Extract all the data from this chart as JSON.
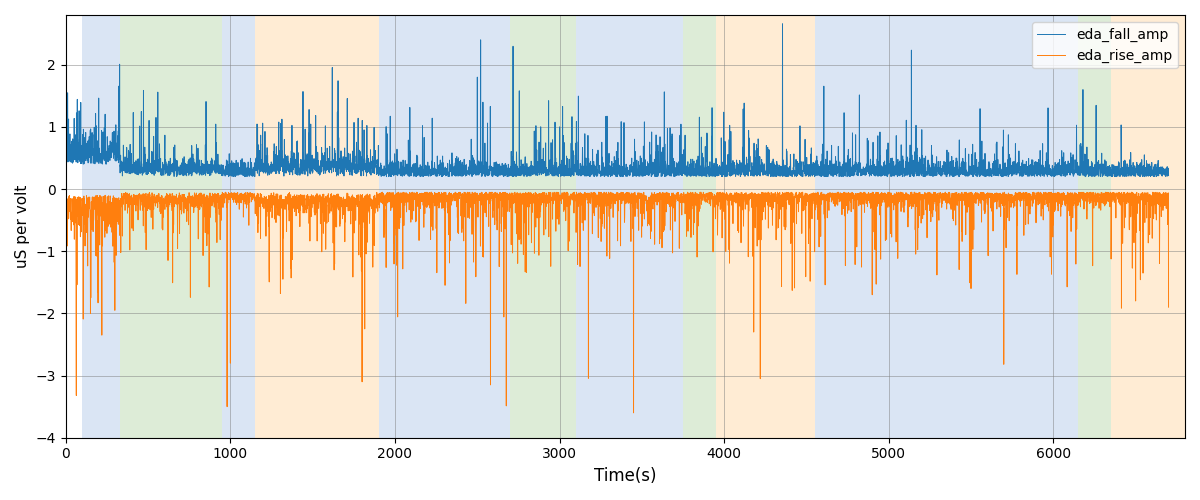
{
  "title": "",
  "xlabel": "Time(s)",
  "ylabel": "uS per volt",
  "xlim": [
    0,
    6800
  ],
  "ylim": [
    -4,
    2.8
  ],
  "legend_labels": [
    "eda_fall_amp",
    "eda_rise_amp"
  ],
  "fall_color": "#1f77b4",
  "rise_color": "#ff7f0e",
  "background_regions": [
    {
      "xmin": 100,
      "xmax": 330,
      "color": "#aec6e8",
      "alpha": 0.45
    },
    {
      "xmin": 330,
      "xmax": 950,
      "color": "#b5d6a7",
      "alpha": 0.45
    },
    {
      "xmin": 950,
      "xmax": 1150,
      "color": "#aec6e8",
      "alpha": 0.45
    },
    {
      "xmin": 1150,
      "xmax": 1900,
      "color": "#ffd6a0",
      "alpha": 0.45
    },
    {
      "xmin": 1900,
      "xmax": 2100,
      "color": "#aec6e8",
      "alpha": 0.45
    },
    {
      "xmin": 2100,
      "xmax": 2700,
      "color": "#aec6e8",
      "alpha": 0.45
    },
    {
      "xmin": 2700,
      "xmax": 3100,
      "color": "#b5d6a7",
      "alpha": 0.45
    },
    {
      "xmin": 3100,
      "xmax": 3750,
      "color": "#aec6e8",
      "alpha": 0.45
    },
    {
      "xmin": 3750,
      "xmax": 3950,
      "color": "#b5d6a7",
      "alpha": 0.45
    },
    {
      "xmin": 3950,
      "xmax": 4550,
      "color": "#ffd6a0",
      "alpha": 0.45
    },
    {
      "xmin": 4550,
      "xmax": 6150,
      "color": "#aec6e8",
      "alpha": 0.45
    },
    {
      "xmin": 6150,
      "xmax": 6350,
      "color": "#b5d6a7",
      "alpha": 0.45
    },
    {
      "xmin": 6350,
      "xmax": 6800,
      "color": "#ffd6a0",
      "alpha": 0.45
    }
  ],
  "seed": 12345,
  "n_points": 6700,
  "t_start": 0,
  "t_end": 6700,
  "grid": true,
  "figsize": [
    12,
    5
  ],
  "dpi": 100
}
